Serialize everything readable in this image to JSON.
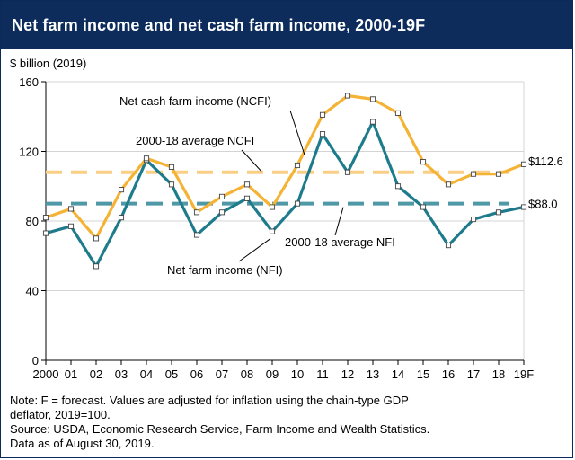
{
  "title": "Net farm income and net cash farm income, 2000-19F",
  "notes": [
    "Note: F = forecast. Values are adjusted for inflation using the chain-type GDP",
    "deflator, 2019=100.",
    "Source: USDA, Economic Research Service, Farm Income and Wealth Statistics.",
    "Data as of August 30, 2019."
  ],
  "colors": {
    "header_bg": "#0d2c5c",
    "ncfi": "#f5b335",
    "nfi": "#1e7b8c",
    "ncfi_avg": "#f9cf86",
    "nfi_avg": "#4f98a6"
  },
  "chart_data": {
    "type": "line",
    "ylabel": "$ billion (2019)",
    "ylim": [
      0,
      160
    ],
    "yticks": [
      "0",
      "40",
      "80",
      "120",
      "160"
    ],
    "ytick_values": [
      0,
      40,
      80,
      120,
      160
    ],
    "categories": [
      "2000",
      "01",
      "02",
      "03",
      "04",
      "05",
      "06",
      "07",
      "08",
      "09",
      "10",
      "11",
      "12",
      "13",
      "14",
      "15",
      "16",
      "17",
      "18",
      "19F"
    ],
    "grid": true,
    "series": [
      {
        "name": "Net cash farm income (NCFI)",
        "key": "ncfi",
        "values": [
          82,
          87,
          70,
          98,
          116,
          111,
          85,
          94,
          101,
          88,
          112,
          141,
          152,
          150,
          142,
          114,
          101,
          107,
          107,
          112.6
        ]
      },
      {
        "name": "Net farm income (NFI)",
        "key": "nfi",
        "values": [
          73,
          77,
          54,
          82,
          115,
          101,
          72,
          85,
          93,
          74,
          90,
          130,
          108,
          137,
          100,
          88,
          66,
          81,
          85,
          88.0
        ]
      }
    ],
    "averages": [
      {
        "name": "2000-18 average NCFI",
        "key": "ncfi_avg",
        "value": 108
      },
      {
        "name": "2000-18 average NFI",
        "key": "nfi_avg",
        "value": 90
      }
    ],
    "end_labels": {
      "ncfi": "$112.6",
      "nfi": "$88.0"
    }
  }
}
